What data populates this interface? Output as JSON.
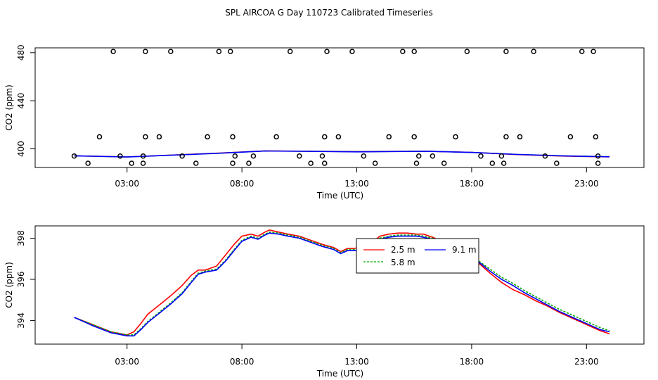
{
  "page_title": "SPL AIRCOA G  Day 110723  Calibrated Timeseries",
  "chart_data": [
    {
      "type": "scatter",
      "xlabel": "Time (UTC)",
      "ylabel": "CO2 (ppm)",
      "xlim": [
        -1.0,
        25.5
      ],
      "ylim": [
        384.5,
        484.0
      ],
      "xticks": [
        3,
        8,
        13,
        18,
        23
      ],
      "xtick_labels": [
        "03:00",
        "08:00",
        "13:00",
        "18:00",
        "23:00"
      ],
      "yticks": [
        400,
        440,
        480
      ],
      "ytick_labels": [
        "400",
        "440",
        "480"
      ],
      "points": [
        [
          0.7,
          394
        ],
        [
          1.3,
          388
        ],
        [
          1.8,
          410
        ],
        [
          2.4,
          481
        ],
        [
          2.7,
          394
        ],
        [
          3.2,
          388
        ],
        [
          3.7,
          394
        ],
        [
          3.7,
          388
        ],
        [
          3.8,
          410
        ],
        [
          3.8,
          481
        ],
        [
          4.4,
          410
        ],
        [
          4.9,
          481
        ],
        [
          5.4,
          394
        ],
        [
          6.0,
          388
        ],
        [
          6.5,
          410
        ],
        [
          7.0,
          481
        ],
        [
          7.5,
          481
        ],
        [
          7.6,
          410
        ],
        [
          7.6,
          388
        ],
        [
          7.7,
          394
        ],
        [
          8.3,
          388
        ],
        [
          8.5,
          394
        ],
        [
          9.5,
          410
        ],
        [
          10.1,
          481
        ],
        [
          10.5,
          394
        ],
        [
          11.0,
          388
        ],
        [
          11.5,
          394
        ],
        [
          11.6,
          388
        ],
        [
          11.6,
          410
        ],
        [
          11.7,
          481
        ],
        [
          12.2,
          410
        ],
        [
          12.8,
          481
        ],
        [
          13.3,
          394
        ],
        [
          13.8,
          388
        ],
        [
          14.4,
          410
        ],
        [
          15.0,
          481
        ],
        [
          15.5,
          481
        ],
        [
          15.5,
          410
        ],
        [
          15.6,
          388
        ],
        [
          15.7,
          394
        ],
        [
          16.3,
          394
        ],
        [
          16.8,
          388
        ],
        [
          17.3,
          410
        ],
        [
          17.8,
          481
        ],
        [
          18.4,
          394
        ],
        [
          18.9,
          388
        ],
        [
          19.3,
          394
        ],
        [
          19.4,
          388
        ],
        [
          19.5,
          410
        ],
        [
          19.5,
          481
        ],
        [
          20.1,
          410
        ],
        [
          20.7,
          481
        ],
        [
          21.2,
          394
        ],
        [
          21.7,
          388
        ],
        [
          22.3,
          410
        ],
        [
          22.8,
          481
        ],
        [
          23.3,
          481
        ],
        [
          23.4,
          410
        ],
        [
          23.5,
          388
        ],
        [
          23.5,
          394
        ]
      ],
      "series": [
        {
          "name": "2.5 m",
          "color": "#ff0000",
          "x": [
            0.7,
            3,
            7,
            9,
            11,
            13,
            16,
            18,
            20,
            22,
            24
          ],
          "y": [
            394.2,
            393.3,
            396.5,
            398.3,
            398.0,
            397.7,
            398.1,
            397.0,
            395.2,
            394.0,
            393.3
          ]
        },
        {
          "name": "5.8 m",
          "color": "#00aa00",
          "x": [
            0.7,
            3,
            7,
            9,
            11,
            13,
            16,
            18,
            20,
            22,
            24
          ],
          "y": [
            394.2,
            393.2,
            396.4,
            398.2,
            398.0,
            397.6,
            398.1,
            397.0,
            395.4,
            394.2,
            393.5
          ]
        },
        {
          "name": "9.1 m",
          "color": "#0000ff",
          "x": [
            0.7,
            3,
            7,
            9,
            11,
            13,
            16,
            18,
            20,
            22,
            24
          ],
          "y": [
            394.2,
            393.2,
            396.3,
            398.2,
            397.9,
            397.5,
            398.0,
            397.0,
            395.3,
            394.1,
            393.4
          ]
        }
      ]
    },
    {
      "type": "line",
      "xlabel": "Time (UTC)",
      "ylabel": "CO2 (ppm)",
      "xlim": [
        -1.0,
        25.5
      ],
      "ylim": [
        392.85,
        398.6
      ],
      "xticks": [
        3,
        8,
        13,
        18,
        23
      ],
      "xtick_labels": [
        "03:00",
        "08:00",
        "13:00",
        "18:00",
        "23:00"
      ],
      "yticks": [
        394,
        396,
        398
      ],
      "ytick_labels": [
        "394",
        "396",
        "398"
      ],
      "legend_position": "upper-center",
      "series": [
        {
          "name": "2.5 m",
          "color": "#ff0000",
          "x": [
            0.7,
            1.5,
            2.3,
            3.0,
            3.3,
            3.6,
            3.9,
            4.4,
            4.9,
            5.4,
            5.8,
            6.1,
            6.4,
            6.9,
            7.3,
            7.7,
            8.0,
            8.4,
            8.7,
            9.0,
            9.2,
            9.6,
            10.0,
            10.5,
            11.0,
            11.5,
            12.0,
            12.3,
            12.6,
            12.9,
            13.2,
            13.5,
            13.8,
            14.0,
            14.4,
            14.8,
            15.2,
            15.6,
            15.9,
            16.3,
            16.8,
            17.3,
            17.8,
            18.3,
            18.8,
            19.3,
            19.8,
            20.3,
            20.8,
            21.3,
            21.8,
            22.3,
            22.8,
            23.3,
            23.6,
            24.0
          ],
          "y": [
            394.15,
            393.8,
            393.45,
            393.3,
            393.45,
            393.85,
            394.3,
            394.75,
            395.2,
            395.7,
            396.2,
            396.45,
            396.45,
            396.65,
            397.2,
            397.75,
            398.1,
            398.2,
            398.1,
            398.3,
            398.4,
            398.3,
            398.2,
            398.1,
            397.9,
            397.7,
            397.55,
            397.35,
            397.5,
            397.5,
            397.6,
            397.55,
            397.9,
            398.1,
            398.2,
            398.25,
            398.25,
            398.2,
            398.2,
            398.05,
            397.8,
            397.45,
            397.1,
            396.8,
            396.3,
            395.85,
            395.5,
            395.25,
            394.95,
            394.7,
            394.4,
            394.15,
            393.9,
            393.65,
            393.5,
            393.35
          ]
        },
        {
          "name": "5.8 m",
          "color": "#00aa00",
          "x": [
            0.7,
            1.5,
            2.3,
            3.0,
            3.3,
            3.6,
            3.9,
            4.4,
            4.9,
            5.4,
            5.8,
            6.1,
            6.4,
            6.9,
            7.3,
            7.7,
            8.0,
            8.4,
            8.7,
            9.0,
            9.2,
            9.6,
            10.0,
            10.5,
            11.0,
            11.5,
            12.0,
            12.3,
            12.6,
            12.9,
            13.2,
            13.5,
            13.8,
            14.0,
            14.4,
            14.8,
            15.2,
            15.6,
            15.9,
            16.3,
            16.8,
            17.3,
            17.8,
            18.3,
            18.8,
            19.3,
            19.8,
            20.3,
            20.8,
            21.3,
            21.8,
            22.3,
            22.8,
            23.3,
            23.6,
            24.0
          ],
          "y": [
            394.15,
            393.8,
            393.45,
            393.3,
            393.3,
            393.6,
            393.95,
            394.4,
            394.85,
            395.35,
            395.9,
            396.3,
            396.4,
            396.5,
            396.95,
            397.5,
            397.9,
            398.1,
            398.0,
            398.2,
            398.3,
            398.25,
            398.15,
            398.05,
            397.85,
            397.65,
            397.5,
            397.3,
            397.45,
            397.45,
            397.5,
            397.45,
            397.75,
            398.0,
            398.1,
            398.15,
            398.15,
            398.15,
            398.1,
            398.0,
            397.8,
            397.5,
            397.2,
            396.9,
            396.5,
            396.1,
            395.8,
            395.45,
            395.15,
            394.85,
            394.55,
            394.3,
            394.05,
            393.8,
            393.65,
            393.5
          ]
        },
        {
          "name": "9.1 m",
          "color": "#0000ff",
          "x": [
            0.7,
            1.5,
            2.3,
            3.0,
            3.3,
            3.6,
            3.9,
            4.4,
            4.9,
            5.4,
            5.8,
            6.1,
            6.4,
            6.9,
            7.3,
            7.7,
            8.0,
            8.4,
            8.7,
            9.0,
            9.2,
            9.6,
            10.0,
            10.5,
            11.0,
            11.5,
            12.0,
            12.3,
            12.6,
            12.9,
            13.2,
            13.5,
            13.8,
            14.0,
            14.4,
            14.8,
            15.2,
            15.6,
            15.9,
            16.3,
            16.8,
            17.3,
            17.8,
            18.3,
            18.8,
            19.3,
            19.8,
            20.3,
            20.8,
            21.3,
            21.8,
            22.3,
            22.8,
            23.3,
            23.6,
            24.0
          ],
          "y": [
            394.15,
            393.75,
            393.4,
            393.25,
            393.25,
            393.55,
            393.9,
            394.35,
            394.8,
            395.3,
            395.85,
            396.25,
            396.35,
            396.45,
            396.9,
            397.45,
            397.85,
            398.05,
            397.95,
            398.15,
            398.25,
            398.2,
            398.1,
            398.0,
            397.8,
            397.6,
            397.45,
            397.25,
            397.4,
            397.4,
            397.45,
            397.4,
            397.7,
            397.95,
            398.05,
            398.1,
            398.1,
            398.1,
            398.05,
            397.95,
            397.75,
            397.45,
            397.15,
            396.85,
            396.4,
            396.0,
            395.7,
            395.35,
            395.05,
            394.75,
            394.45,
            394.2,
            393.95,
            393.7,
            393.55,
            393.45
          ]
        }
      ]
    }
  ]
}
